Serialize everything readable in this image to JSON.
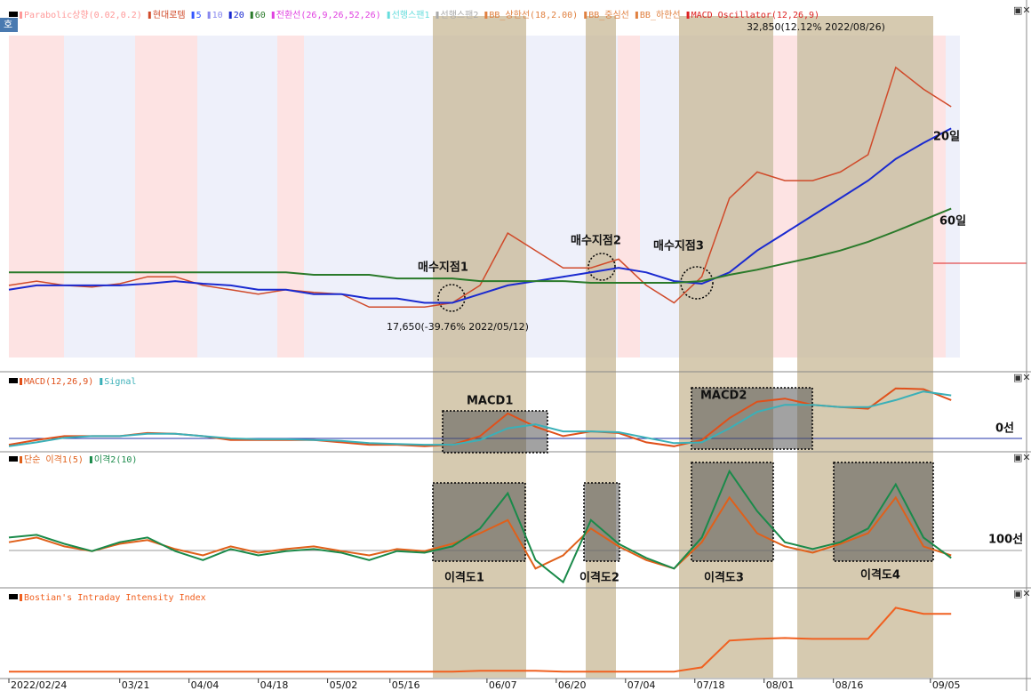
{
  "badge": "호",
  "chart_data": [
    {
      "type": "line",
      "name_tag": "현대로템",
      "x": [
        0,
        4,
        8,
        12,
        16,
        20,
        24,
        28,
        32,
        36,
        40,
        44,
        48,
        52,
        56,
        60,
        64,
        68,
        72,
        76,
        80,
        84,
        88,
        92,
        96,
        100,
        104,
        108,
        112,
        116,
        120,
        124,
        128,
        132,
        136
      ],
      "xlim": [
        0,
        137
      ],
      "ylim": [
        16000,
        34000
      ],
      "series": [
        {
          "name": "현대로템",
          "color": "#d04a2a",
          "values": [
            19820,
            20050,
            19820,
            19730,
            19910,
            20280,
            20280,
            19820,
            19590,
            19360,
            19590,
            19450,
            19360,
            18670,
            18670,
            18670,
            18900,
            19820,
            22590,
            21670,
            20750,
            20750,
            21210,
            19820,
            18900,
            20280,
            24440,
            25830,
            25370,
            25370,
            25830,
            26750,
            31370,
            30220,
            29290
          ]
        },
        {
          "name": "20",
          "color": "#1a2ad0",
          "values": [
            19590,
            19820,
            19820,
            19820,
            19820,
            19910,
            20050,
            19910,
            19820,
            19590,
            19590,
            19360,
            19360,
            19130,
            19130,
            18900,
            18900,
            19360,
            19820,
            20050,
            20280,
            20510,
            20750,
            20510,
            20050,
            19910,
            20510,
            21670,
            22590,
            23520,
            24440,
            25370,
            26520,
            27370,
            28140
          ]
        },
        {
          "name": "60",
          "color": "#2a7a2a",
          "values": [
            20510,
            20510,
            20510,
            20510,
            20510,
            20510,
            20510,
            20510,
            20510,
            20510,
            20510,
            20380,
            20380,
            20380,
            20190,
            20190,
            20190,
            20050,
            20050,
            20050,
            20050,
            19960,
            19960,
            19960,
            19960,
            20050,
            20380,
            20650,
            20980,
            21300,
            21670,
            22130,
            22690,
            23290,
            23890
          ]
        }
      ],
      "indicators": [
        {
          "name": "Parabolic상향(0.02,0.2)",
          "color": "#ff9999"
        },
        {
          "name": "5",
          "color": "#3355ff"
        },
        {
          "name": "10",
          "color": "#8888ee"
        },
        {
          "name": "전환선(26,9,26,52,26)",
          "color": "#e040e0"
        },
        {
          "name": "선행스팬1",
          "color": "#66dddd"
        },
        {
          "name": "선행스팬2",
          "color": "#aaaaaa"
        },
        {
          "name": "BB_상한선(18,2.00)",
          "color": "#e08040"
        },
        {
          "name": "BB_중심선",
          "color": "#e08040"
        },
        {
          "name": "BB_하한선",
          "color": "#e08040"
        },
        {
          "name": "MACD Oscillator(12,26,9)",
          "color": "#dd2222"
        }
      ],
      "annotations": [
        "32,850(12.12% 2022/08/26)",
        "17,650(-39.76% 2022/05/12)",
        "20일",
        "60일",
        "매수지점1",
        "매수지점2",
        "매수지점3"
      ]
    },
    {
      "type": "line",
      "x": [
        0,
        4,
        8,
        12,
        16,
        20,
        24,
        28,
        32,
        36,
        40,
        44,
        48,
        52,
        56,
        60,
        64,
        68,
        72,
        76,
        80,
        84,
        88,
        92,
        96,
        100,
        104,
        108,
        112,
        116,
        120,
        124,
        128,
        132,
        136
      ],
      "xlim": [
        0,
        137
      ],
      "ylim": [
        -17,
        83
      ],
      "series": [
        {
          "name": "MACD(12,26,9)",
          "color": "#e0501a",
          "values": [
            -8,
            -2,
            3,
            3,
            3,
            7,
            6,
            3,
            -2,
            -2,
            -2,
            -2,
            -5,
            -8,
            -8,
            -10,
            -8,
            3,
            32,
            15,
            3,
            9,
            7,
            -5,
            -10,
            -2,
            26,
            47,
            51,
            43,
            40,
            38,
            64,
            63,
            49
          ]
        },
        {
          "name": "Signal",
          "color": "#3ab0b8",
          "values": [
            -10,
            -5,
            1,
            3,
            3,
            6,
            6,
            3,
            0,
            -1,
            -1,
            -2,
            -3,
            -6,
            -7,
            -8,
            -8,
            -2,
            13,
            18,
            9,
            9,
            8,
            1,
            -6,
            -5,
            13,
            34,
            43,
            43,
            40,
            40,
            49,
            60,
            55
          ]
        }
      ],
      "annotations": [
        "MACD1",
        "MACD2",
        "0선"
      ]
    },
    {
      "type": "line",
      "x": [
        0,
        4,
        8,
        12,
        16,
        20,
        24,
        28,
        32,
        36,
        40,
        44,
        48,
        52,
        56,
        60,
        64,
        68,
        72,
        76,
        80,
        84,
        88,
        92,
        96,
        100,
        104,
        108,
        112,
        116,
        120,
        124,
        128,
        132,
        136
      ],
      "xlim": [
        0,
        137
      ],
      "ylim": [
        93,
        118
      ],
      "series": [
        {
          "name": "단순 이격1(5)",
          "color": "#e0601a",
          "values": [
            101.5,
            102.4,
            100.7,
            99.8,
            101.2,
            101.9,
            100.2,
            99,
            100.7,
            99.5,
            100.2,
            100.7,
            99.8,
            99,
            100.2,
            99.8,
            101.2,
            103.2,
            105.7,
            96.5,
            99,
            104.1,
            100.7,
            98.1,
            96.5,
            101.5,
            110,
            103.2,
            100.7,
            99.5,
            101.2,
            103.2,
            110,
            100.7,
            99
          ]
        },
        {
          "name": "이격2(10)",
          "color": "#1a8a4a",
          "values": [
            102.4,
            102.9,
            101.2,
            99.8,
            101.5,
            102.4,
            99.8,
            98.1,
            100.2,
            99,
            99.8,
            100.2,
            99.5,
            98.1,
            99.8,
            99.5,
            100.7,
            104.1,
            110.8,
            98.1,
            93.9,
            105.7,
            101.2,
            98.5,
            96.5,
            102.4,
            115,
            107.4,
            101.5,
            100.2,
            101.5,
            104.1,
            112.5,
            102.4,
            98.5
          ]
        }
      ],
      "annotations": [
        "100선",
        "이격도1",
        "이격도2",
        "이격도3",
        "이격도4"
      ]
    },
    {
      "type": "line",
      "x": [
        0,
        4,
        8,
        12,
        16,
        20,
        24,
        28,
        32,
        36,
        40,
        44,
        48,
        52,
        56,
        60,
        64,
        68,
        72,
        76,
        80,
        84,
        88,
        92,
        96,
        100,
        104,
        108,
        112,
        116,
        120,
        124,
        128,
        132,
        136
      ],
      "xlim": [
        0,
        137
      ],
      "ylim": [
        0,
        100
      ],
      "series": [
        {
          "name": "Bostian's Intraday Intensity Index",
          "color": "#f06020",
          "values": [
            7,
            7,
            7,
            7,
            7,
            7,
            7,
            7,
            7,
            7,
            7,
            7,
            7,
            7,
            7,
            7,
            7,
            8,
            8,
            8,
            7,
            7,
            7,
            7,
            7,
            12,
            43,
            45,
            46,
            45,
            45,
            45,
            81,
            74,
            74
          ]
        }
      ],
      "xticks": [
        {
          "value": 0,
          "label": "2022/02/24"
        },
        {
          "value": 16,
          "label": "03/21"
        },
        {
          "value": 26,
          "label": "04/04"
        },
        {
          "value": 36,
          "label": "04/18"
        },
        {
          "value": 46,
          "label": "05/02"
        },
        {
          "value": 55,
          "label": "05/16"
        },
        {
          "value": 69,
          "label": "06/07"
        },
        {
          "value": 79,
          "label": "06/20"
        },
        {
          "value": 89,
          "label": "07/04"
        },
        {
          "value": 99,
          "label": "07/18"
        },
        {
          "value": 109,
          "label": "08/01"
        },
        {
          "value": 119,
          "label": "08/16"
        },
        {
          "value": 133,
          "label": "09/05"
        }
      ]
    }
  ]
}
